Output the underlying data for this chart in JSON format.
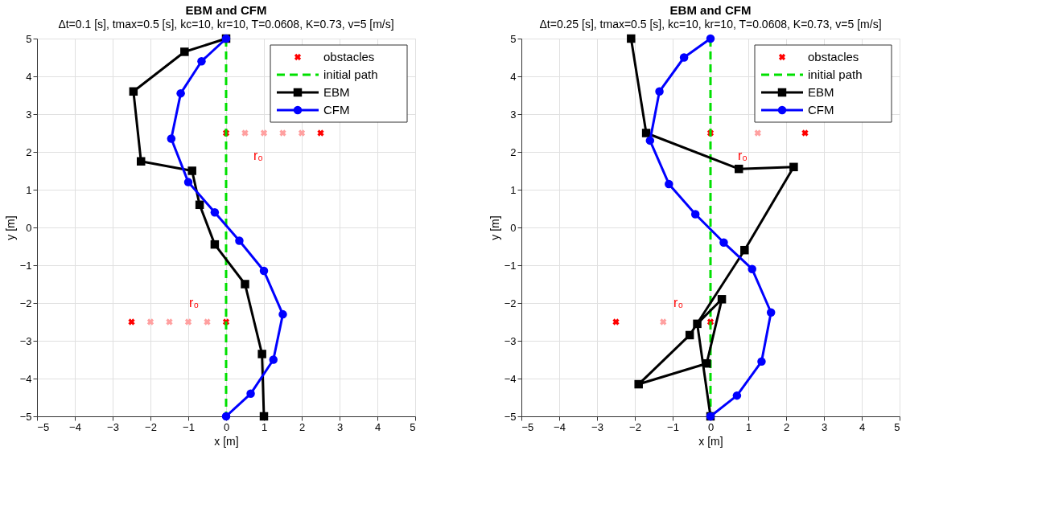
{
  "chart_data": [
    {
      "type": "line",
      "title": "EBM and CFM",
      "subtitle": "Δt=0.1 [s], tmax=0.5 [s], kc=10, kr=10, T=0.0608, K=0.73, v=5 [m/s]",
      "xlabel": "x [m]",
      "ylabel": "y [m]",
      "xlim": [
        -5,
        5
      ],
      "xticks": [
        -5,
        -4,
        -3,
        -2,
        -1,
        0,
        1,
        2,
        3,
        4,
        5
      ],
      "ylim": [
        -5,
        5
      ],
      "yticks": [
        -5,
        -4,
        -3,
        -2,
        -1,
        0,
        1,
        2,
        3,
        4,
        5
      ],
      "grid": true,
      "legend": "top right",
      "annotations": [
        "r₀",
        "r₀"
      ],
      "series": [
        {
          "type": "scatter",
          "color": "#ffa0a0",
          "marker": "cross",
          "x": [
            -2,
            -1.5,
            -1,
            -0.5,
            0.5,
            1,
            1.5,
            2
          ],
          "values": [
            -2.5,
            -2.5,
            -2.5,
            -2.5,
            2.5,
            2.5,
            2.5,
            2.5
          ]
        },
        {
          "name": "obstacles",
          "type": "scatter",
          "color": "#ff0000",
          "marker": "cross",
          "x": [
            -2.5,
            0,
            0,
            2.5
          ],
          "values": [
            -2.5,
            -2.5,
            2.5,
            2.5
          ]
        },
        {
          "name": "initial path",
          "color": "#00e000",
          "marker": "none",
          "line_style": "dashed",
          "x": [
            0,
            0
          ],
          "values": [
            5,
            -5
          ]
        },
        {
          "name": "EBM",
          "color": "#000000",
          "marker": "square",
          "line_style": "solid",
          "x": [
            0,
            -1.1,
            -2.45,
            -2.25,
            -0.9,
            -0.7,
            -0.3,
            0.5,
            0.95,
            1.0
          ],
          "values": [
            5,
            4.65,
            3.6,
            1.75,
            1.5,
            0.6,
            -0.45,
            -1.5,
            -3.35,
            -5
          ]
        },
        {
          "name": "CFM",
          "color": "#0000ff",
          "marker": "circle",
          "line_style": "solid",
          "x": [
            0,
            -0.65,
            -1.2,
            -1.45,
            -1.0,
            -0.3,
            0.35,
            1.0,
            1.5,
            1.25,
            0.65,
            0
          ],
          "values": [
            5,
            4.4,
            3.55,
            2.35,
            1.2,
            0.4,
            -0.35,
            -1.15,
            -2.3,
            -3.5,
            -4.4,
            -5
          ]
        }
      ]
    },
    {
      "type": "line",
      "title": "EBM and CFM",
      "subtitle": "Δt=0.25 [s], tmax=0.5 [s], kc=10, kr=10, T=0.0608, K=0.73, v=5 [m/s]",
      "xlabel": "x [m]",
      "ylabel": "y [m]",
      "xlim": [
        -5,
        5
      ],
      "xticks": [
        -5,
        -4,
        -3,
        -2,
        -1,
        0,
        1,
        2,
        3,
        4,
        5
      ],
      "ylim": [
        -5,
        5
      ],
      "yticks": [
        -5,
        -4,
        -3,
        -2,
        -1,
        0,
        1,
        2,
        3,
        4,
        5
      ],
      "grid": true,
      "legend": "top right",
      "annotations": [
        "r₀",
        "r₀"
      ],
      "series": [
        {
          "type": "scatter",
          "color": "#ffa0a0",
          "marker": "cross",
          "x": [
            -1.25,
            1.25
          ],
          "values": [
            -2.5,
            2.5
          ]
        },
        {
          "name": "obstacles",
          "type": "scatter",
          "color": "#ff0000",
          "marker": "cross",
          "x": [
            -2.5,
            0,
            0,
            2.5
          ],
          "values": [
            -2.5,
            -2.5,
            2.5,
            2.5
          ]
        },
        {
          "name": "initial path",
          "color": "#00e000",
          "marker": "none",
          "line_style": "dashed",
          "x": [
            0,
            0
          ],
          "values": [
            5,
            -5
          ]
        },
        {
          "name": "EBM",
          "color": "#000000",
          "marker": "square",
          "line_style": "solid",
          "x": [
            -2.1,
            -1.7,
            0.75,
            2.2,
            0.9,
            -0.55,
            -1.9,
            -0.1,
            0.3,
            -0.35,
            0
          ],
          "values": [
            5,
            2.5,
            1.55,
            1.6,
            -0.6,
            -2.85,
            -4.15,
            -3.6,
            -1.9,
            -2.55,
            -5
          ]
        },
        {
          "name": "CFM",
          "color": "#0000ff",
          "marker": "circle",
          "line_style": "solid",
          "x": [
            0,
            -0.7,
            -1.35,
            -1.6,
            -1.1,
            -0.4,
            0.35,
            1.1,
            1.6,
            1.35,
            0.7,
            0
          ],
          "values": [
            5,
            4.5,
            3.6,
            2.3,
            1.15,
            0.35,
            -0.4,
            -1.1,
            -2.25,
            -3.55,
            -4.45,
            -5
          ]
        }
      ]
    }
  ]
}
